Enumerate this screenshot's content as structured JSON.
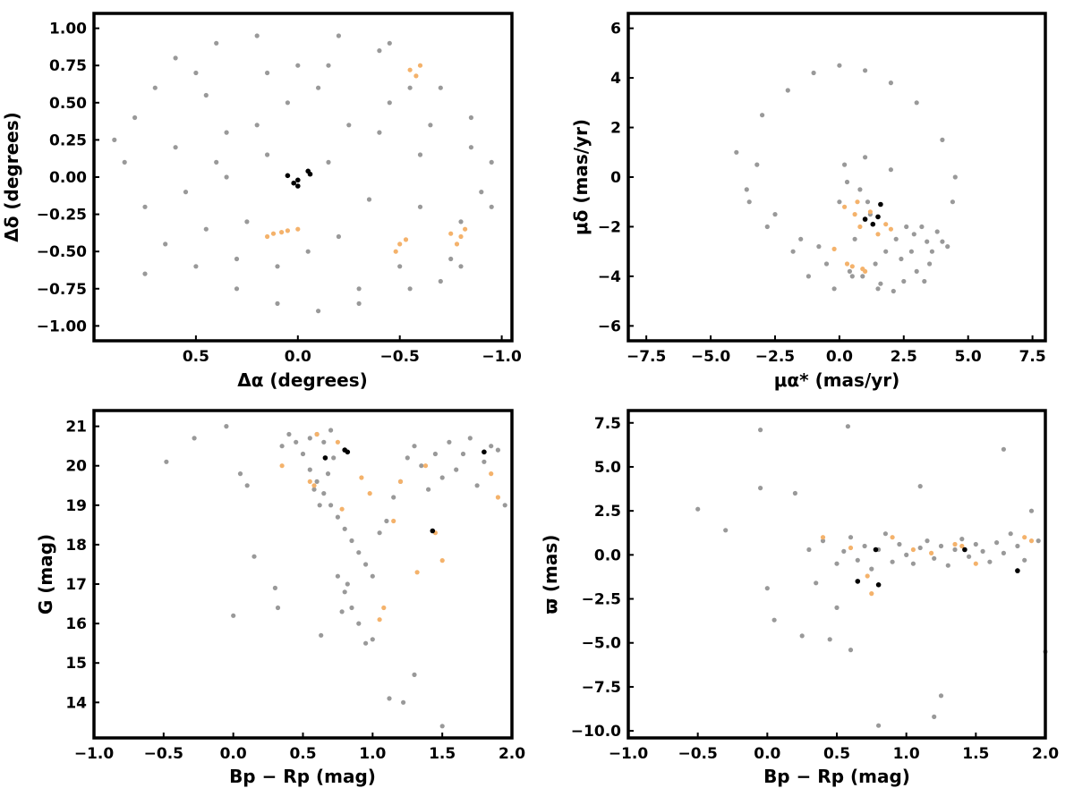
{
  "colors": {
    "background": "#999999",
    "members": "#F4B26B",
    "members_dark": "#C97844",
    "special": "#000000",
    "frame": "#000000"
  },
  "chart_data": [
    {
      "type": "scatter",
      "panel": "top-left",
      "xlabel": "Δα (degrees)",
      "ylabel": "Δδ (degrees)",
      "xlim": [
        1.0,
        -1.05
      ],
      "ylim": [
        -1.1,
        1.1
      ],
      "x_inverted": true,
      "grid": false,
      "xticks": [
        0.5,
        0.0,
        -0.5,
        -1.0
      ],
      "xtick_labels": [
        "0.5",
        "0.0",
        "−0.5",
        "−1.0"
      ],
      "yticks": [
        1.0,
        0.75,
        0.5,
        0.25,
        0.0,
        -0.25,
        -0.5,
        -0.75,
        -1.0
      ],
      "ytick_labels": [
        "1.00",
        "0.75",
        "0.50",
        "0.25",
        "0.00",
        "−0.25",
        "−0.50",
        "−0.75",
        "−1.00"
      ],
      "series": [
        {
          "role": "field",
          "color": "#999999",
          "x": [
            0.8,
            0.85,
            0.6,
            0.4,
            0.2,
            -0.2,
            -0.4,
            -0.7,
            -0.85,
            -0.95,
            0.75,
            0.5,
            0.3,
            0.1,
            -0.1,
            -0.3,
            -0.55,
            -0.75,
            0.7,
            0.45,
            0.15,
            -0.15,
            -0.45,
            -0.65,
            -0.9,
            0.6,
            0.35,
            0.05,
            -0.25,
            -0.6,
            -0.8,
            0.55,
            0.25,
            -0.05,
            -0.35,
            -0.7,
            0.65,
            0.4,
            0.2,
            -0.2,
            -0.5,
            -0.85,
            0.5,
            0.3,
            0.1,
            -0.1,
            -0.4,
            -0.6,
            0.35,
            0.0,
            -0.3,
            -0.55,
            0.15,
            -0.15,
            0.45,
            -0.45,
            0.9,
            -0.95,
            0.75,
            -0.8
          ],
          "y": [
            0.4,
            0.1,
            0.8,
            0.9,
            0.95,
            0.95,
            0.85,
            0.6,
            0.4,
            0.1,
            -0.2,
            -0.6,
            -0.75,
            -0.85,
            -0.9,
            -0.85,
            -0.75,
            -0.55,
            0.6,
            0.55,
            0.7,
            0.75,
            0.5,
            0.35,
            -0.1,
            0.2,
            0.3,
            0.5,
            0.35,
            0.15,
            -0.3,
            -0.1,
            -0.3,
            -0.5,
            -0.15,
            -0.7,
            -0.45,
            0.1,
            0.35,
            -0.4,
            -0.6,
            0.2,
            0.7,
            -0.55,
            -0.6,
            0.6,
            0.3,
            -0.2,
            0.0,
            0.75,
            -0.75,
            0.6,
            0.15,
            0.1,
            -0.35,
            0.9,
            0.25,
            -0.2,
            -0.65,
            -0.6
          ]
        },
        {
          "role": "members",
          "color": "#F4B26B",
          "x": [
            -0.55,
            -0.58,
            -0.6,
            -0.5,
            -0.48,
            -0.53,
            -0.75,
            -0.8,
            -0.82,
            -0.78,
            0.0,
            0.08,
            0.12,
            0.15,
            0.05
          ],
          "y": [
            0.72,
            0.68,
            0.75,
            -0.45,
            -0.5,
            -0.42,
            -0.38,
            -0.4,
            -0.35,
            -0.45,
            -0.35,
            -0.37,
            -0.38,
            -0.4,
            -0.36
          ]
        },
        {
          "role": "special",
          "color": "#000000",
          "x": [
            0.05,
            0.0,
            0.0,
            -0.05,
            -0.06,
            0.02
          ],
          "y": [
            0.01,
            -0.02,
            -0.06,
            0.04,
            0.02,
            -0.04
          ]
        }
      ]
    },
    {
      "type": "scatter",
      "panel": "top-right",
      "xlabel": "μα* (mas/yr)",
      "ylabel": "μδ (mas/yr)",
      "xlim": [
        -8.2,
        8.0
      ],
      "ylim": [
        -6.6,
        6.6
      ],
      "grid": false,
      "xticks": [
        -7.5,
        -5.0,
        -2.5,
        0.0,
        2.5,
        5.0,
        7.5
      ],
      "xtick_labels": [
        "−7.5",
        "−5.0",
        "−2.5",
        "0.0",
        "2.5",
        "5.0",
        "7.5"
      ],
      "yticks": [
        6,
        4,
        2,
        0,
        -2,
        -4,
        -6
      ],
      "ytick_labels": [
        "6",
        "4",
        "2",
        "0",
        "−2",
        "−4",
        "−6"
      ],
      "series": [
        {
          "role": "field",
          "color": "#999999",
          "x": [
            -3.5,
            -4.0,
            -3.0,
            -2.0,
            -1.0,
            0.0,
            1.0,
            2.0,
            3.0,
            4.0,
            4.5,
            -2.5,
            -1.5,
            -0.5,
            0.5,
            1.5,
            2.5,
            3.5,
            4.2,
            0.2,
            0.8,
            1.2,
            2.2,
            2.8,
            3.2,
            3.8,
            -0.8,
            0.4,
            1.6,
            2.4,
            3.0,
            3.6,
            0.0,
            1.0,
            2.0,
            -1.8,
            -2.8,
            -3.6,
            1.4,
            2.6,
            0.6,
            4.4,
            -0.2,
            1.8,
            3.4,
            0.9,
            2.1,
            3.3,
            -1.2,
            0.3,
            2.9,
            1.1,
            4.0,
            -3.2
          ],
          "y": [
            -1.0,
            1.0,
            2.5,
            3.5,
            4.2,
            4.5,
            4.3,
            3.8,
            3.0,
            1.5,
            0.0,
            -1.5,
            -2.5,
            -3.5,
            -4.0,
            -4.5,
            -4.2,
            -3.5,
            -2.8,
            0.5,
            -0.5,
            -1.5,
            -2.5,
            -3.0,
            -2.0,
            -2.2,
            -2.8,
            -3.8,
            -4.3,
            -3.3,
            -3.8,
            -3.0,
            -1.0,
            0.8,
            0.3,
            -3.0,
            -2.0,
            -0.5,
            -3.5,
            -2.0,
            -2.5,
            -1.0,
            -4.5,
            -3.0,
            -2.6,
            -4.0,
            -4.6,
            -4.2,
            -4.0,
            -0.2,
            -2.3,
            -1.0,
            -2.6,
            0.5
          ]
        },
        {
          "role": "members",
          "color": "#F4B26B",
          "x": [
            0.2,
            0.6,
            0.8,
            1.2,
            1.5,
            1.8,
            2.0,
            0.5,
            0.3,
            -0.2,
            0.7,
            0.9,
            1.0
          ],
          "y": [
            -1.2,
            -1.5,
            -2.0,
            -1.4,
            -2.3,
            -1.9,
            -2.1,
            -3.6,
            -3.5,
            -2.9,
            -1.0,
            -3.7,
            -3.8
          ]
        },
        {
          "role": "special",
          "color": "#000000",
          "x": [
            1.6,
            1.0,
            1.5,
            1.3
          ],
          "y": [
            -1.1,
            -1.7,
            -1.6,
            -1.9
          ]
        }
      ]
    },
    {
      "type": "scatter",
      "panel": "bottom-left",
      "xlabel": "Bp − Rp (mag)",
      "ylabel": "G (mag)",
      "xlim": [
        -1.0,
        2.0
      ],
      "ylim": [
        13.1,
        21.4
      ],
      "grid": false,
      "xticks": [
        -1.0,
        -0.5,
        0.0,
        0.5,
        1.0,
        1.5,
        2.0
      ],
      "xtick_labels": [
        "−1.0",
        "−0.5",
        "0.0",
        "0.5",
        "1.0",
        "1.5",
        "2.0"
      ],
      "yticks": [
        14,
        15,
        16,
        17,
        18,
        19,
        20,
        21
      ],
      "ytick_labels": [
        "14",
        "15",
        "16",
        "17",
        "18",
        "19",
        "20",
        "21"
      ],
      "series": [
        {
          "role": "field",
          "color": "#999999",
          "x": [
            -0.48,
            -0.28,
            -0.05,
            0.05,
            0.1,
            0.15,
            0.3,
            0.35,
            0.4,
            0.45,
            0.5,
            0.55,
            0.6,
            0.65,
            0.7,
            0.75,
            0.8,
            0.85,
            0.9,
            0.95,
            1.0,
            1.05,
            1.1,
            1.15,
            1.2,
            1.25,
            1.3,
            1.35,
            1.4,
            1.45,
            1.5,
            1.55,
            1.6,
            1.65,
            1.7,
            1.75,
            1.8,
            1.85,
            1.9,
            1.95,
            0.75,
            0.8,
            0.85,
            0.9,
            0.95,
            1.0,
            0.78,
            0.82,
            1.12,
            1.22,
            1.5,
            0.0,
            0.32,
            0.63,
            0.7,
            0.6,
            0.55,
            0.65,
            0.72,
            0.68,
            0.58,
            0.62,
            1.3
          ],
          "y": [
            20.1,
            20.7,
            21.0,
            19.8,
            19.5,
            17.7,
            16.9,
            20.5,
            20.8,
            20.6,
            20.3,
            19.9,
            19.6,
            19.3,
            19.0,
            18.7,
            18.4,
            18.1,
            17.8,
            17.5,
            17.2,
            18.3,
            18.6,
            19.2,
            19.6,
            20.2,
            20.5,
            20.0,
            19.4,
            20.3,
            19.7,
            20.6,
            19.9,
            20.3,
            20.7,
            19.5,
            20.1,
            20.5,
            20.4,
            19.0,
            17.2,
            16.8,
            16.4,
            16.0,
            15.5,
            15.6,
            16.3,
            17.0,
            14.1,
            14.0,
            13.4,
            16.2,
            16.4,
            15.7,
            20.9,
            20.8,
            20.7,
            20.6,
            20.2,
            19.8,
            19.4,
            19.0,
            14.7
          ]
        },
        {
          "role": "members",
          "color": "#F4B26B",
          "x": [
            0.35,
            0.55,
            0.58,
            0.78,
            0.92,
            0.98,
            1.05,
            1.08,
            1.15,
            1.2,
            1.32,
            1.38,
            1.45,
            1.5,
            1.85,
            1.9,
            0.6,
            0.75
          ],
          "y": [
            20.0,
            19.6,
            19.5,
            18.9,
            19.7,
            19.3,
            16.1,
            16.4,
            18.6,
            19.6,
            17.3,
            20.0,
            18.3,
            17.6,
            19.8,
            19.2,
            20.8,
            20.6
          ]
        },
        {
          "role": "special",
          "color": "#000000",
          "x": [
            0.66,
            0.8,
            0.82,
            1.43,
            1.8
          ],
          "y": [
            20.2,
            20.4,
            20.35,
            18.35,
            20.35
          ]
        }
      ]
    },
    {
      "type": "scatter",
      "panel": "bottom-right",
      "xlabel": "Bp − Rp (mag)",
      "ylabel": "ϖ (mas)",
      "xlim": [
        -1.0,
        2.0
      ],
      "ylim": [
        -10.4,
        8.2
      ],
      "grid": false,
      "xticks": [
        -1.0,
        -0.5,
        0.0,
        0.5,
        1.0,
        1.5,
        2.0
      ],
      "xtick_labels": [
        "−1.0",
        "−0.5",
        "0.0",
        "0.5",
        "1.0",
        "1.5",
        "2.0"
      ],
      "yticks": [
        7.5,
        5.0,
        2.5,
        0.0,
        -2.5,
        -5.0,
        -7.5,
        -10.0
      ],
      "ytick_labels": [
        "7.5",
        "5.0",
        "2.5",
        "0.0",
        "−2.5",
        "−5.0",
        "−7.5",
        "−10.0"
      ],
      "series": [
        {
          "role": "field",
          "color": "#999999",
          "x": [
            -0.5,
            -0.3,
            -0.05,
            -0.05,
            0.0,
            0.05,
            0.2,
            0.25,
            0.3,
            0.4,
            0.5,
            0.55,
            0.6,
            0.65,
            0.7,
            0.75,
            0.8,
            0.85,
            0.9,
            0.95,
            1.0,
            1.05,
            1.1,
            1.15,
            1.2,
            1.25,
            1.3,
            1.35,
            1.4,
            1.45,
            1.5,
            1.55,
            1.6,
            1.65,
            1.7,
            1.75,
            1.8,
            1.85,
            1.9,
            1.95,
            2.0,
            0.58,
            1.1,
            1.7,
            1.2,
            0.8,
            1.25,
            0.45,
            0.6,
            0.5,
            0.35
          ],
          "y": [
            2.6,
            1.4,
            7.1,
            3.8,
            -1.9,
            -3.7,
            3.5,
            -4.6,
            0.3,
            0.8,
            -0.5,
            0.2,
            1.0,
            -0.3,
            0.5,
            -0.8,
            0.3,
            1.2,
            -0.4,
            0.6,
            0.0,
            -0.5,
            0.4,
            0.8,
            -0.2,
            0.5,
            -0.6,
            0.3,
            0.9,
            -0.1,
            0.6,
            0.2,
            -0.4,
            0.7,
            0.1,
            1.2,
            0.5,
            -0.3,
            2.5,
            0.8,
            -5.5,
            7.3,
            3.9,
            6.0,
            -9.2,
            -9.7,
            -8.0,
            -4.8,
            -5.4,
            -3.0,
            -1.6
          ]
        },
        {
          "role": "members",
          "color": "#F4B26B",
          "x": [
            0.4,
            0.6,
            0.72,
            0.75,
            0.9,
            1.05,
            1.18,
            1.35,
            1.4,
            1.5,
            1.9,
            1.85
          ],
          "y": [
            1.0,
            0.4,
            -1.2,
            -2.2,
            1.0,
            0.3,
            0.1,
            0.6,
            0.5,
            -0.5,
            0.8,
            1.0
          ]
        },
        {
          "role": "special",
          "color": "#000000",
          "x": [
            0.65,
            0.78,
            0.8,
            1.42,
            1.8
          ],
          "y": [
            -1.5,
            0.3,
            -1.7,
            0.3,
            -0.9
          ]
        }
      ]
    }
  ]
}
